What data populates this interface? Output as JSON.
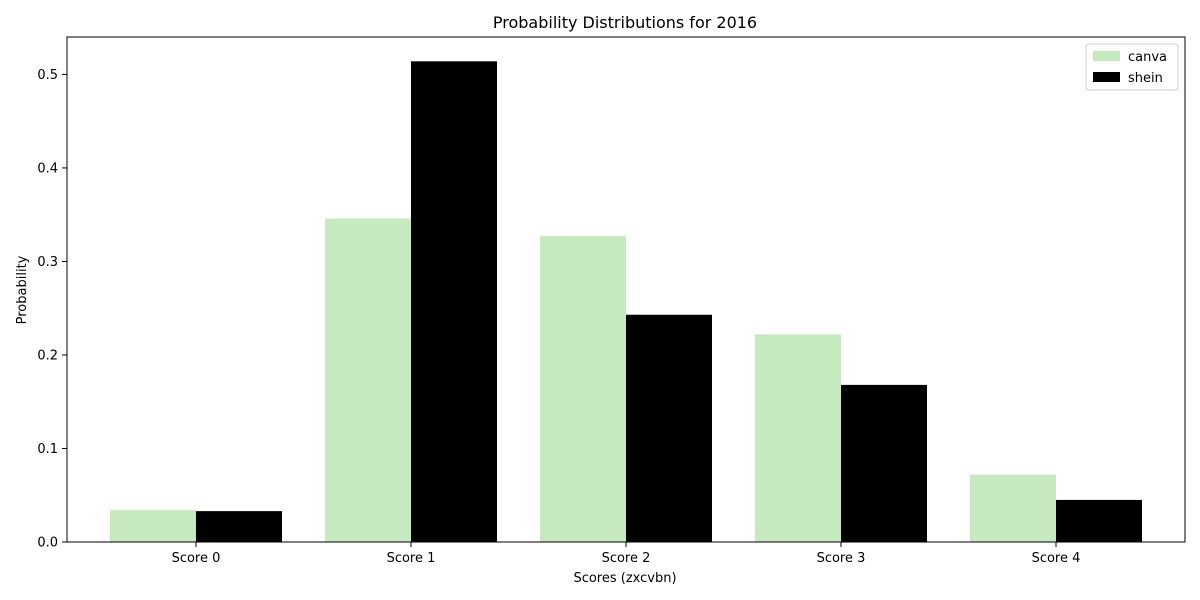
{
  "chart_data": {
    "type": "bar",
    "title": "Probability Distributions for 2016",
    "xlabel": "Scores (zxcvbn)",
    "ylabel": "Probability",
    "categories": [
      "Score 0",
      "Score 1",
      "Score 2",
      "Score 3",
      "Score 4"
    ],
    "series": [
      {
        "name": "canva",
        "color": "#c7e9c0",
        "values": [
          0.034,
          0.346,
          0.327,
          0.222,
          0.072
        ]
      },
      {
        "name": "shein",
        "color": "#000000",
        "values": [
          0.033,
          0.514,
          0.243,
          0.168,
          0.045
        ]
      }
    ],
    "yticks": [
      "0.0",
      "0.1",
      "0.2",
      "0.3",
      "0.4",
      "0.5"
    ],
    "ylim": [
      0,
      0.54
    ],
    "grid": false,
    "legend_position": "top-right"
  }
}
